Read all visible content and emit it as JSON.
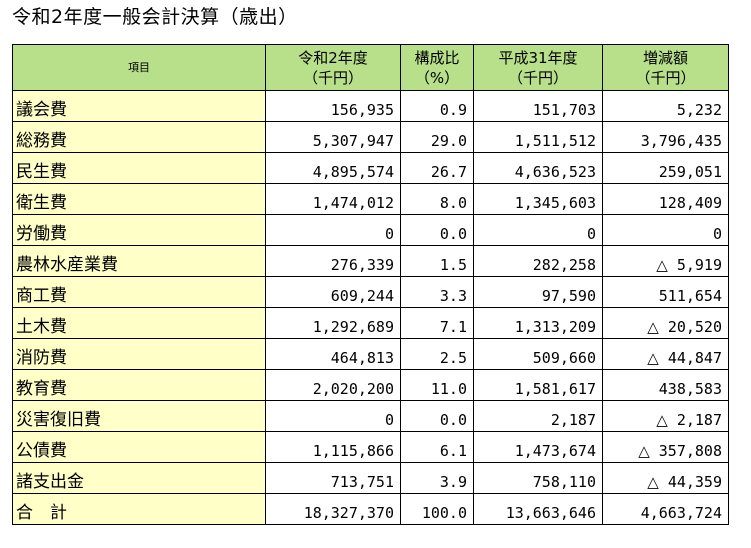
{
  "title": "令和2年度一般会計決算（歳出）",
  "colors": {
    "header_bg": "#b8e08a",
    "item_bg": "#ffffc8",
    "border": "#000000"
  },
  "table": {
    "headers": {
      "item": "項目",
      "r2_line1": "令和2年度",
      "r2_line2": "（千円）",
      "ratio_line1": "構成比",
      "ratio_line2": "（%）",
      "h31_line1": "平成31年度",
      "h31_line2": "（千円）",
      "diff_line1": "増減額",
      "diff_line2": "（千円）"
    },
    "rows": [
      {
        "item": "議会費",
        "r2": "156,935",
        "ratio": "0.9",
        "h31": "151,703",
        "diff": "5,232",
        "diff_neg": ""
      },
      {
        "item": "総務費",
        "r2": "5,307,947",
        "ratio": "29.0",
        "h31": "1,511,512",
        "diff": "3,796,435",
        "diff_neg": ""
      },
      {
        "item": "民生費",
        "r2": "4,895,574",
        "ratio": "26.7",
        "h31": "4,636,523",
        "diff": "259,051",
        "diff_neg": ""
      },
      {
        "item": "衛生費",
        "r2": "1,474,012",
        "ratio": "8.0",
        "h31": "1,345,603",
        "diff": "128,409",
        "diff_neg": ""
      },
      {
        "item": "労働費",
        "r2": "0",
        "ratio": "0.0",
        "h31": "0",
        "diff": "0",
        "diff_neg": ""
      },
      {
        "item": "農林水産業費",
        "r2": "276,339",
        "ratio": "1.5",
        "h31": "282,258",
        "diff": "5,919",
        "diff_neg": "△"
      },
      {
        "item": "商工費",
        "r2": "609,244",
        "ratio": "3.3",
        "h31": "97,590",
        "diff": "511,654",
        "diff_neg": ""
      },
      {
        "item": "土木費",
        "r2": "1,292,689",
        "ratio": "7.1",
        "h31": "1,313,209",
        "diff": "20,520",
        "diff_neg": "△"
      },
      {
        "item": "消防費",
        "r2": "464,813",
        "ratio": "2.5",
        "h31": "509,660",
        "diff": "44,847",
        "diff_neg": "△"
      },
      {
        "item": "教育費",
        "r2": "2,020,200",
        "ratio": "11.0",
        "h31": "1,581,617",
        "diff": "438,583",
        "diff_neg": ""
      },
      {
        "item": "災害復旧費",
        "r2": "0",
        "ratio": "0.0",
        "h31": "2,187",
        "diff": "2,187",
        "diff_neg": "△"
      },
      {
        "item": "公債費",
        "r2": "1,115,866",
        "ratio": "6.1",
        "h31": "1,473,674",
        "diff": "357,808",
        "diff_neg": "△"
      },
      {
        "item": "諸支出金",
        "r2": "713,751",
        "ratio": "3.9",
        "h31": "758,110",
        "diff": "44,359",
        "diff_neg": "△"
      },
      {
        "item": "合　計",
        "r2": "18,327,370",
        "ratio": "100.0",
        "h31": "13,663,646",
        "diff": "4,663,724",
        "diff_neg": ""
      }
    ]
  }
}
